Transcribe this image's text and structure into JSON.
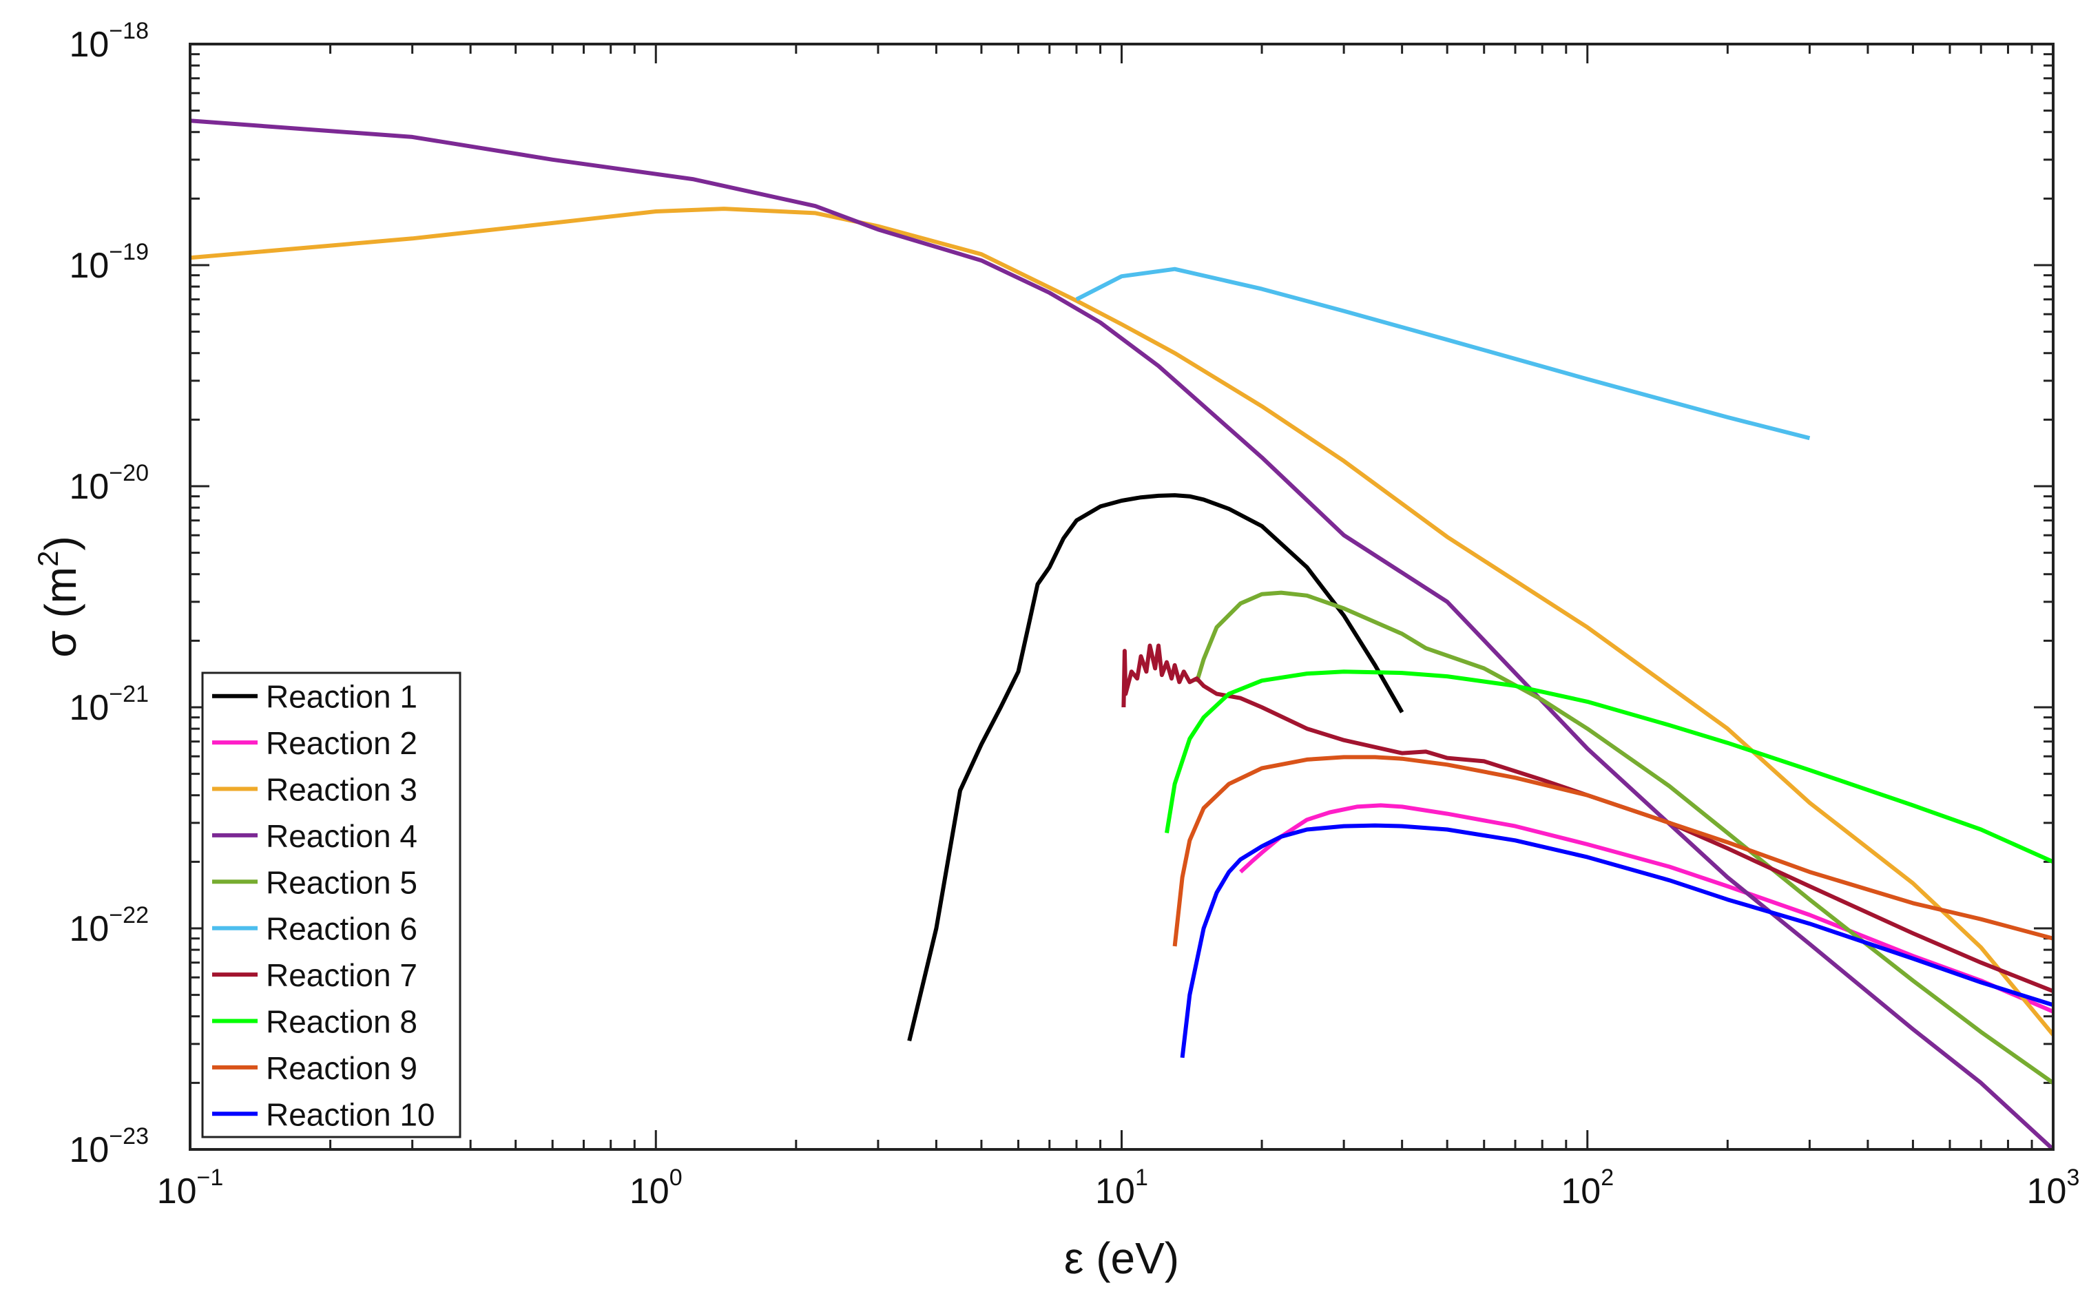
{
  "chart_data": {
    "type": "line",
    "title": "",
    "xlabel": "ε (eV)",
    "ylabel_base": "σ (m",
    "ylabel_sup": "2",
    "ylabel_close": ")",
    "xscale": "log",
    "yscale": "log",
    "xlim": [
      0.1,
      1000
    ],
    "ylim": [
      1e-23,
      1e-18
    ],
    "grid": false,
    "legend_position": "bottom-left",
    "x_ticks": [
      {
        "value": 0.1,
        "base": "10",
        "exp": "−1"
      },
      {
        "value": 1,
        "base": "10",
        "exp": "0"
      },
      {
        "value": 10,
        "base": "10",
        "exp": "1"
      },
      {
        "value": 100,
        "base": "10",
        "exp": "2"
      },
      {
        "value": 1000,
        "base": "10",
        "exp": "3"
      }
    ],
    "y_ticks": [
      {
        "value": 1e-18,
        "base": "10",
        "exp": "−18"
      },
      {
        "value": 1e-19,
        "base": "10",
        "exp": "−19"
      },
      {
        "value": 1e-20,
        "base": "10",
        "exp": "−20"
      },
      {
        "value": 1e-21,
        "base": "10",
        "exp": "−21"
      },
      {
        "value": 1e-22,
        "base": "10",
        "exp": "−22"
      },
      {
        "value": 1e-23,
        "base": "10",
        "exp": "−23"
      }
    ],
    "series": [
      {
        "name": "Reaction 1",
        "color": "#000000",
        "x": [
          3.5,
          4.0,
          4.5,
          5.0,
          5.5,
          6.0,
          6.3,
          6.6,
          7.0,
          7.5,
          8.0,
          9.0,
          10,
          11,
          12,
          13,
          14,
          15,
          17,
          20,
          25,
          30,
          35,
          40
        ],
        "y": [
          3.1e-23,
          1e-22,
          4.2e-22,
          6.8e-22,
          1e-21,
          1.45e-21,
          2.3e-21,
          3.6e-21,
          4.3e-21,
          5.8e-21,
          7e-21,
          8.1e-21,
          8.6e-21,
          8.9e-21,
          9.05e-21,
          9.1e-21,
          9e-21,
          8.7e-21,
          7.9e-21,
          6.6e-21,
          4.3e-21,
          2.6e-21,
          1.55e-21,
          9.5e-22
        ]
      },
      {
        "name": "Reaction 2",
        "color": "#ff1ec8",
        "x": [
          18,
          19,
          20,
          22,
          25,
          28,
          32,
          36,
          40,
          50,
          70,
          100,
          150,
          200,
          300,
          500,
          700,
          1000
        ],
        "y": [
          1.8e-22,
          2e-22,
          2.2e-22,
          2.6e-22,
          3.1e-22,
          3.35e-22,
          3.55e-22,
          3.6e-22,
          3.55e-22,
          3.3e-22,
          2.9e-22,
          2.4e-22,
          1.9e-22,
          1.55e-22,
          1.15e-22,
          7.5e-23,
          5.8e-23,
          4.2e-23
        ]
      },
      {
        "name": "Reaction 3",
        "color": "#efaa2a",
        "x": [
          0.1,
          0.3,
          0.6,
          1.0,
          1.4,
          2.2,
          3.0,
          5.0,
          8.0,
          10,
          13,
          20,
          30,
          50,
          100,
          200,
          300,
          500,
          700,
          1000
        ],
        "y": [
          1.08e-19,
          1.32e-19,
          1.55e-19,
          1.75e-19,
          1.8e-19,
          1.72e-19,
          1.5e-19,
          1.12e-19,
          6.9e-20,
          5.4e-20,
          4e-20,
          2.3e-20,
          1.3e-20,
          5.9e-21,
          2.3e-21,
          8e-22,
          3.7e-22,
          1.6e-22,
          8.2e-23,
          3.3e-23
        ]
      },
      {
        "name": "Reaction 4",
        "color": "#7c2994",
        "x": [
          0.1,
          0.3,
          0.6,
          1.2,
          2.2,
          3.0,
          5.0,
          7.0,
          9.0,
          12,
          20,
          30,
          50,
          100,
          200,
          300,
          500,
          700,
          1000
        ],
        "y": [
          4.5e-19,
          3.8e-19,
          3e-19,
          2.45e-19,
          1.85e-19,
          1.45e-19,
          1.05e-19,
          7.5e-20,
          5.5e-20,
          3.5e-20,
          1.35e-20,
          6e-21,
          3e-21,
          6.5e-22,
          1.7e-22,
          8.5e-23,
          3.5e-23,
          2e-23,
          1e-23
        ]
      },
      {
        "name": "Reaction 5",
        "color": "#77ac30",
        "x": [
          14.5,
          15,
          16,
          18,
          20,
          22,
          25,
          30,
          40,
          45,
          60,
          80,
          100,
          150,
          200,
          300,
          500,
          700,
          1000
        ],
        "y": [
          1.3e-21,
          1.65e-21,
          2.3e-21,
          2.95e-21,
          3.25e-21,
          3.3e-21,
          3.2e-21,
          2.8e-21,
          2.15e-21,
          1.85e-21,
          1.5e-21,
          1.08e-21,
          8e-22,
          4.4e-22,
          2.7e-22,
          1.35e-22,
          5.8e-23,
          3.4e-23,
          2e-23
        ]
      },
      {
        "name": "Reaction 6",
        "color": "#4dbeee",
        "x": [
          8,
          10,
          13,
          20,
          30,
          50,
          100,
          200,
          300
        ],
        "y": [
          7e-20,
          8.9e-20,
          9.6e-20,
          7.8e-20,
          6.2e-20,
          4.6e-20,
          3.05e-20,
          2.05e-20,
          1.65e-20
        ]
      },
      {
        "name": "Reaction 7",
        "color": "#a2142f",
        "x": [
          10.1,
          10.15,
          10.2,
          10.5,
          10.8,
          11,
          11.3,
          11.5,
          11.8,
          12,
          12.2,
          12.5,
          12.8,
          13,
          13.3,
          13.6,
          14,
          14.5,
          15,
          16,
          18,
          20,
          25,
          30,
          40,
          45,
          50,
          60,
          80,
          100,
          150,
          200,
          300,
          500,
          700,
          1000
        ],
        "y": [
          1e-21,
          1.8e-21,
          1.15e-21,
          1.45e-21,
          1.35e-21,
          1.7e-21,
          1.45e-21,
          1.9e-21,
          1.5e-21,
          1.9e-21,
          1.4e-21,
          1.6e-21,
          1.35e-21,
          1.55e-21,
          1.3e-21,
          1.45e-21,
          1.3e-21,
          1.35e-21,
          1.25e-21,
          1.15e-21,
          1.1e-21,
          1e-21,
          8e-22,
          7.1e-22,
          6.2e-22,
          6.3e-22,
          5.9e-22,
          5.7e-22,
          4.7e-22,
          4e-22,
          3e-22,
          2.3e-22,
          1.55e-22,
          9.5e-23,
          7e-23,
          5.2e-23
        ]
      },
      {
        "name": "Reaction 8",
        "color": "#00ff00",
        "x": [
          12.5,
          13,
          14,
          15,
          17,
          20,
          25,
          30,
          40,
          50,
          70,
          100,
          150,
          200,
          300,
          500,
          700,
          1000
        ],
        "y": [
          2.7e-22,
          4.5e-22,
          7.2e-22,
          9e-22,
          1.15e-21,
          1.32e-21,
          1.42e-21,
          1.45e-21,
          1.43e-21,
          1.38e-21,
          1.25e-21,
          1.06e-21,
          8.3e-22,
          6.9e-22,
          5.2e-22,
          3.6e-22,
          2.8e-22,
          2e-22
        ]
      },
      {
        "name": "Reaction 9",
        "color": "#d95319",
        "x": [
          13,
          13.5,
          14,
          15,
          17,
          20,
          25,
          30,
          35,
          40,
          50,
          70,
          100,
          150,
          200,
          300,
          500,
          700,
          1000
        ],
        "y": [
          8.3e-23,
          1.7e-22,
          2.5e-22,
          3.5e-22,
          4.5e-22,
          5.3e-22,
          5.8e-22,
          5.95e-22,
          5.95e-22,
          5.85e-22,
          5.5e-22,
          4.8e-22,
          4e-22,
          3e-22,
          2.45e-22,
          1.8e-22,
          1.3e-22,
          1.1e-22,
          9e-23
        ]
      },
      {
        "name": "Reaction 10",
        "color": "#0000ff",
        "x": [
          13.5,
          14,
          15,
          16,
          17,
          18,
          20,
          22,
          25,
          30,
          35,
          40,
          50,
          70,
          100,
          150,
          200,
          300,
          500,
          700,
          1000
        ],
        "y": [
          2.6e-23,
          5e-23,
          1e-22,
          1.45e-22,
          1.8e-22,
          2.05e-22,
          2.35e-22,
          2.6e-22,
          2.8e-22,
          2.9e-22,
          2.92e-22,
          2.9e-22,
          2.8e-22,
          2.5e-22,
          2.1e-22,
          1.65e-22,
          1.35e-22,
          1.05e-22,
          7.3e-23,
          5.7e-23,
          4.5e-23
        ]
      }
    ]
  }
}
